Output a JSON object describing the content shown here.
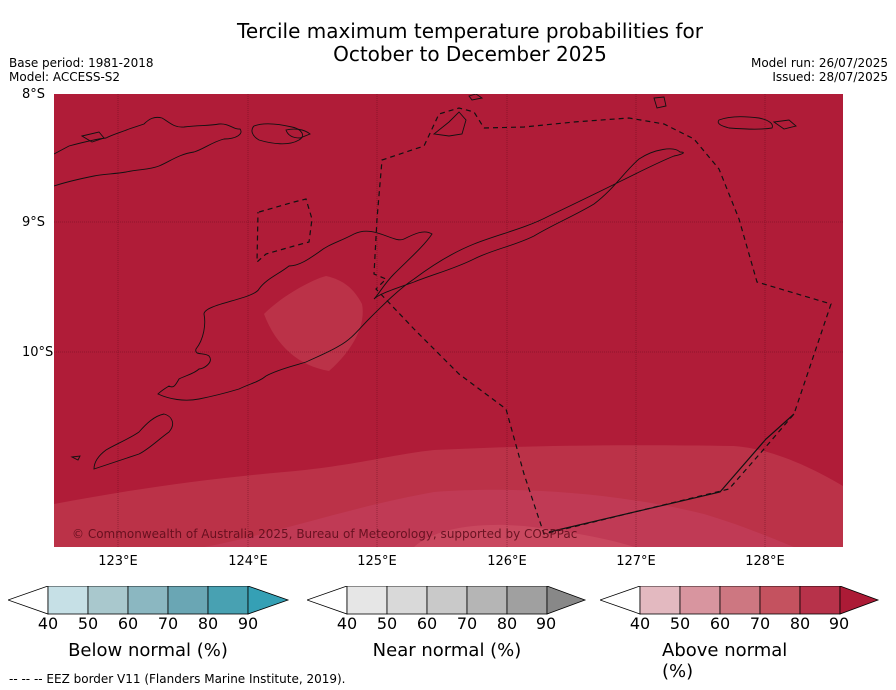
{
  "title": {
    "line1": "Tercile maximum temperature probabilities for",
    "line2": "October to December 2025"
  },
  "meta": {
    "base_period": "Base period: 1981-2018",
    "model": "Model: ACCESS-S2",
    "model_run": "Model run: 26/07/2025",
    "issued": "Issued: 28/07/2025"
  },
  "map": {
    "lat_labels": [
      "8°S",
      "9°S",
      "10°S"
    ],
    "lon_labels": [
      "123°E",
      "124°E",
      "125°E",
      "126°E",
      "127°E",
      "128°E"
    ],
    "attribution": "© Commonwealth of Australia 2025, Bureau of Meteorology, supported by COSPPac",
    "background_color": "#b01c38",
    "zone_colors": [
      "#bb3248",
      "#c03a55",
      "#c9485f"
    ]
  },
  "colorbars": [
    {
      "title": "Below normal (%)",
      "ticks": [
        "40",
        "50",
        "60",
        "70",
        "80",
        "90"
      ],
      "colors": [
        "#ffffff",
        "#c6e0e6",
        "#a9c8cd",
        "#8bb7c1",
        "#6aa6b4",
        "#48a1b2",
        "#35a0b5"
      ]
    },
    {
      "title": "Near normal (%)",
      "ticks": [
        "40",
        "50",
        "60",
        "70",
        "80",
        "90"
      ],
      "colors": [
        "#ffffff",
        "#e6e6e6",
        "#d9d9d9",
        "#c9c9c9",
        "#b5b5b5",
        "#a0a0a0",
        "#888888"
      ]
    },
    {
      "title": "Above normal (%)",
      "ticks": [
        "40",
        "50",
        "60",
        "70",
        "80",
        "90"
      ],
      "colors": [
        "#ffffff",
        "#e3b9c0",
        "#d8959f",
        "#cd7781",
        "#c4525f",
        "#b7324a",
        "#ac1b36"
      ]
    }
  ],
  "footer": "--  --  -- EEZ border V11 (Flanders Marine Institute, 2019)."
}
